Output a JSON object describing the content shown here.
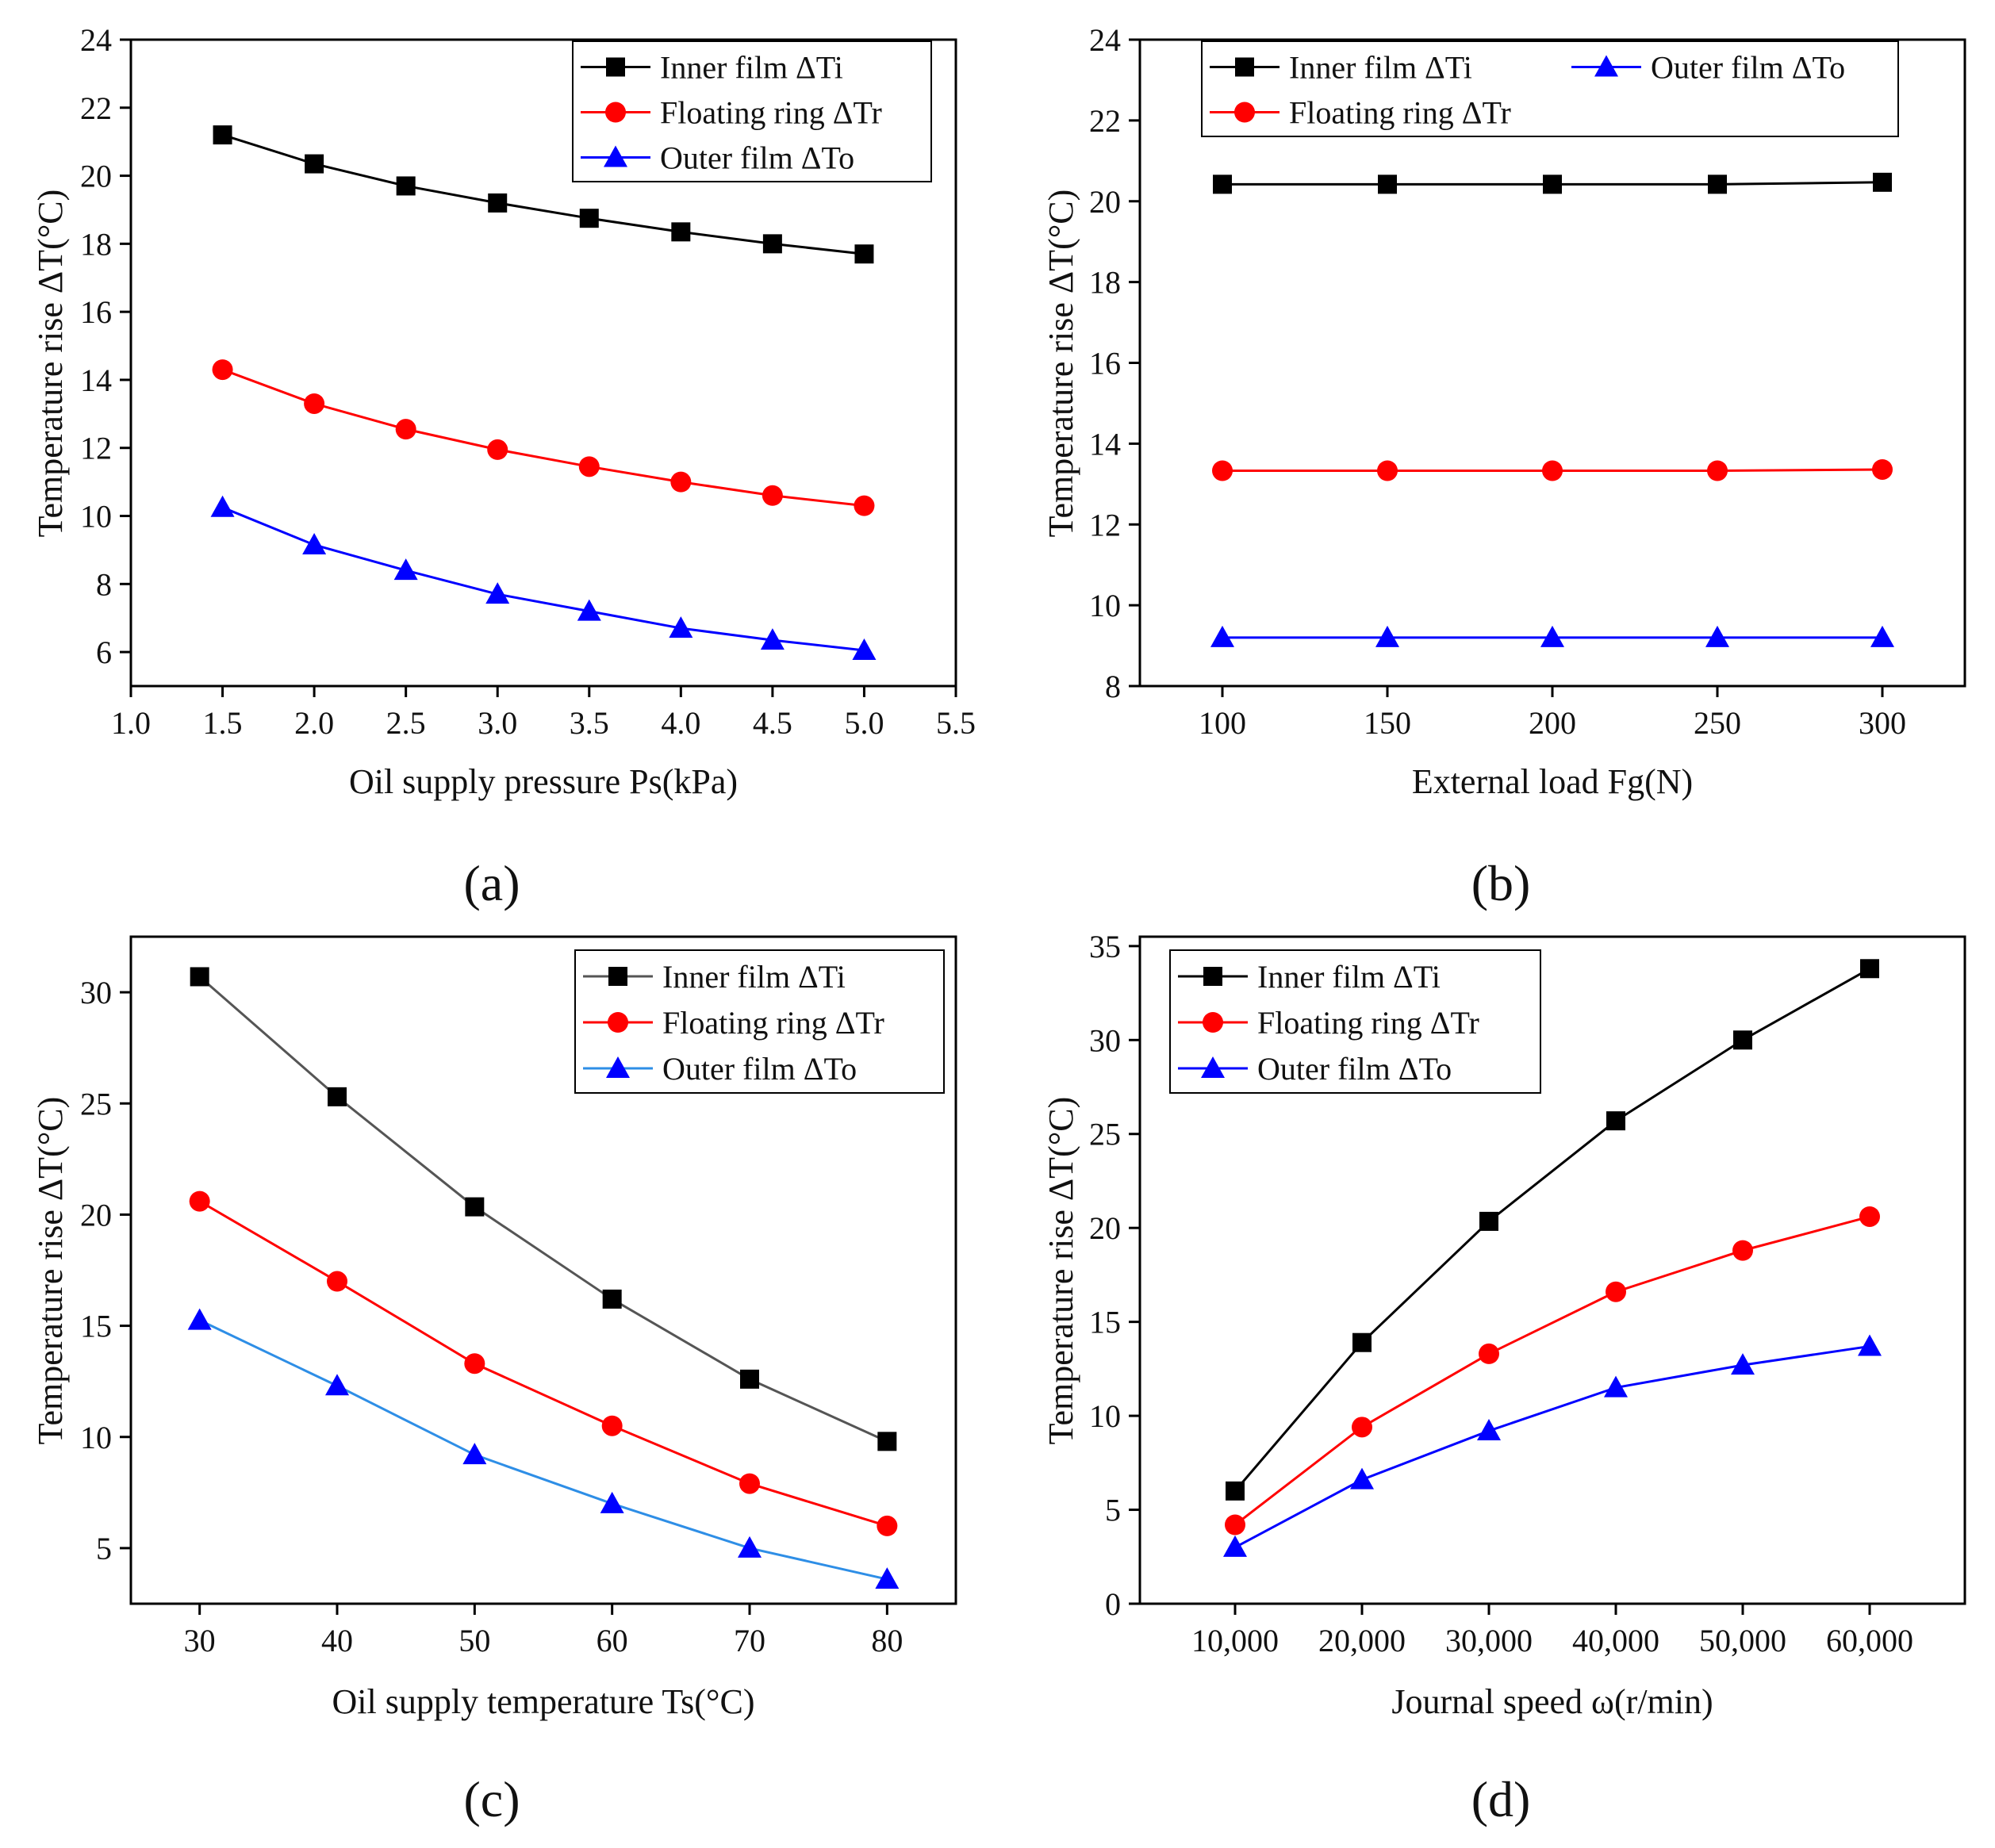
{
  "colors": {
    "inner": "#000000",
    "ring": "#ff0000",
    "outer_blue": "#0000ff",
    "outer_light_blue": "#2e8ee6"
  },
  "chart_data": [
    {
      "panel": "(a)",
      "type": "line",
      "title": "",
      "xlabel": "Oil supply pressure Ps(kPa)",
      "ylabel": "Temperature rise ΔT(°C)",
      "xlim": [
        1.0,
        5.5
      ],
      "ylim": [
        5,
        24
      ],
      "x_ticks": [
        1.0,
        1.5,
        2.0,
        2.5,
        3.0,
        3.5,
        4.0,
        4.5,
        5.0,
        5.5
      ],
      "x_tick_labels": [
        "1.0",
        "1.5",
        "2.0",
        "2.5",
        "3.0",
        "3.5",
        "4.0",
        "4.5",
        "5.0",
        "5.5"
      ],
      "y_ticks": [
        6,
        8,
        10,
        12,
        14,
        16,
        18,
        20,
        22,
        24
      ],
      "y_tick_labels": [
        "6",
        "8",
        "10",
        "12",
        "14",
        "16",
        "18",
        "20",
        "22",
        "24"
      ],
      "legend_position": "top-right",
      "legend_columns": 1,
      "x": [
        1.5,
        2.0,
        2.5,
        3.0,
        3.5,
        4.0,
        4.5,
        5.0
      ],
      "series": [
        {
          "name": "Inner film ΔTi",
          "marker": "square",
          "color": "#000000",
          "values": [
            21.2,
            20.35,
            19.7,
            19.2,
            18.75,
            18.35,
            18.0,
            17.7
          ]
        },
        {
          "name": "Floating ring ΔTr",
          "marker": "circle",
          "color": "#ff0000",
          "values": [
            14.3,
            13.3,
            12.55,
            11.95,
            11.45,
            11.0,
            10.6,
            10.3
          ]
        },
        {
          "name": "Outer film ΔTo",
          "marker": "triangle",
          "color": "#0000ff",
          "values": [
            10.25,
            9.15,
            8.4,
            7.7,
            7.2,
            6.7,
            6.35,
            6.05
          ]
        }
      ]
    },
    {
      "panel": "(b)",
      "type": "line",
      "title": "",
      "xlabel": "External load Fg(N)",
      "ylabel": "Temperature rise ΔT(°C)",
      "xlim": [
        75,
        325
      ],
      "ylim": [
        8,
        24
      ],
      "x_ticks": [
        100,
        150,
        200,
        250,
        300
      ],
      "x_tick_labels": [
        "100",
        "150",
        "200",
        "250",
        "300"
      ],
      "y_ticks": [
        8,
        10,
        12,
        14,
        16,
        18,
        20,
        22,
        24
      ],
      "y_tick_labels": [
        "8",
        "10",
        "12",
        "14",
        "16",
        "18",
        "20",
        "22",
        "24"
      ],
      "legend_position": "top",
      "legend_columns": 2,
      "x": [
        100,
        150,
        200,
        250,
        300
      ],
      "series": [
        {
          "name": "Inner film ΔTi",
          "marker": "square",
          "color": "#000000",
          "values": [
            20.42,
            20.42,
            20.42,
            20.42,
            20.47
          ]
        },
        {
          "name": "Outer film ΔTo",
          "marker": "triangle",
          "color": "#0000ff",
          "values": [
            9.2,
            9.2,
            9.2,
            9.2,
            9.2
          ]
        },
        {
          "name": "Floating ring ΔTr",
          "marker": "circle",
          "color": "#ff0000",
          "values": [
            13.33,
            13.33,
            13.33,
            13.33,
            13.36
          ]
        }
      ]
    },
    {
      "panel": "(c)",
      "type": "line",
      "title": "",
      "xlabel": "Oil supply temperature Ts(°C)",
      "ylabel": "Temperature rise ΔT(°C)",
      "xlim": [
        25,
        85
      ],
      "ylim": [
        2.5,
        32.5
      ],
      "x_ticks": [
        30,
        40,
        50,
        60,
        70,
        80
      ],
      "x_tick_labels": [
        "30",
        "40",
        "50",
        "60",
        "70",
        "80"
      ],
      "y_ticks": [
        5,
        10,
        15,
        20,
        25,
        30
      ],
      "y_tick_labels": [
        "5",
        "10",
        "15",
        "20",
        "25",
        "30"
      ],
      "legend_position": "top-right",
      "legend_columns": 1,
      "x": [
        30,
        40,
        50,
        60,
        70,
        80
      ],
      "series": [
        {
          "name": "Inner film ΔTi",
          "marker": "square",
          "color": "#000000",
          "line_color": "#555555",
          "values": [
            30.7,
            25.3,
            20.35,
            16.2,
            12.6,
            9.8
          ]
        },
        {
          "name": "Floating ring ΔTr",
          "marker": "circle",
          "color": "#ff0000",
          "values": [
            20.6,
            17.0,
            13.3,
            10.5,
            7.9,
            6.0
          ]
        },
        {
          "name": "Outer film ΔTo",
          "marker": "triangle",
          "color": "#0000ff",
          "line_color": "#2e8ee6",
          "values": [
            15.25,
            12.3,
            9.2,
            7.0,
            5.0,
            3.6
          ]
        }
      ]
    },
    {
      "panel": "(d)",
      "type": "line",
      "title": "",
      "xlabel": "Journal speed ω(r/min)",
      "ylabel": "Temperature rise ΔT(°C)",
      "xlim": [
        2500,
        67500
      ],
      "ylim": [
        0,
        35.5
      ],
      "x_ticks": [
        10000,
        20000,
        30000,
        40000,
        50000,
        60000
      ],
      "x_tick_labels": [
        "10,000",
        "20,000",
        "30,000",
        "40,000",
        "50,000",
        "60,000"
      ],
      "y_ticks": [
        0,
        5,
        10,
        15,
        20,
        25,
        30,
        35
      ],
      "y_tick_labels": [
        "0",
        "5",
        "10",
        "15",
        "20",
        "25",
        "30",
        "35"
      ],
      "legend_position": "top-left",
      "legend_columns": 1,
      "x": [
        10000,
        20000,
        30000,
        40000,
        50000,
        60000
      ],
      "series": [
        {
          "name": "Inner film ΔTi",
          "marker": "square",
          "color": "#000000",
          "values": [
            6.0,
            13.9,
            20.35,
            25.7,
            30.0,
            33.8
          ]
        },
        {
          "name": "Floating ring ΔTr",
          "marker": "circle",
          "color": "#ff0000",
          "values": [
            4.2,
            9.4,
            13.3,
            16.6,
            18.8,
            20.6
          ]
        },
        {
          "name": "Outer film ΔTo",
          "marker": "triangle",
          "color": "#0000ff",
          "values": [
            3.0,
            6.6,
            9.2,
            11.5,
            12.7,
            13.7
          ]
        }
      ]
    }
  ]
}
